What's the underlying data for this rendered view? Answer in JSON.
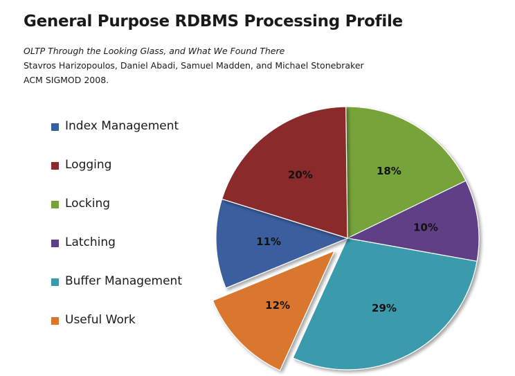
{
  "header": {
    "title": "General Purpose RDBMS Processing Profile",
    "subtitle": "OLTP Through the Looking Glass, and What We Found There",
    "authors": "Stavros Harizopoulos, Daniel Abadi, Samuel Madden, and Michael Stonebraker",
    "venue": "ACM SIGMOD 2008."
  },
  "chart_data": {
    "type": "pie",
    "title": "General Purpose RDBMS Processing Profile",
    "legend_position": "left",
    "categories": [
      "Index Management",
      "Logging",
      "Locking",
      "Latching",
      "Buffer Management",
      "Useful Work"
    ],
    "values": [
      11,
      20,
      18,
      10,
      29,
      12
    ],
    "labels": [
      "11%",
      "20%",
      "18%",
      "10%",
      "29%",
      "12%"
    ],
    "colors": [
      "#3a5f9e",
      "#8b2a2c",
      "#77a33a",
      "#5e3f86",
      "#3a9aac",
      "#d9772f"
    ],
    "exploded": [
      "Useful Work"
    ]
  }
}
